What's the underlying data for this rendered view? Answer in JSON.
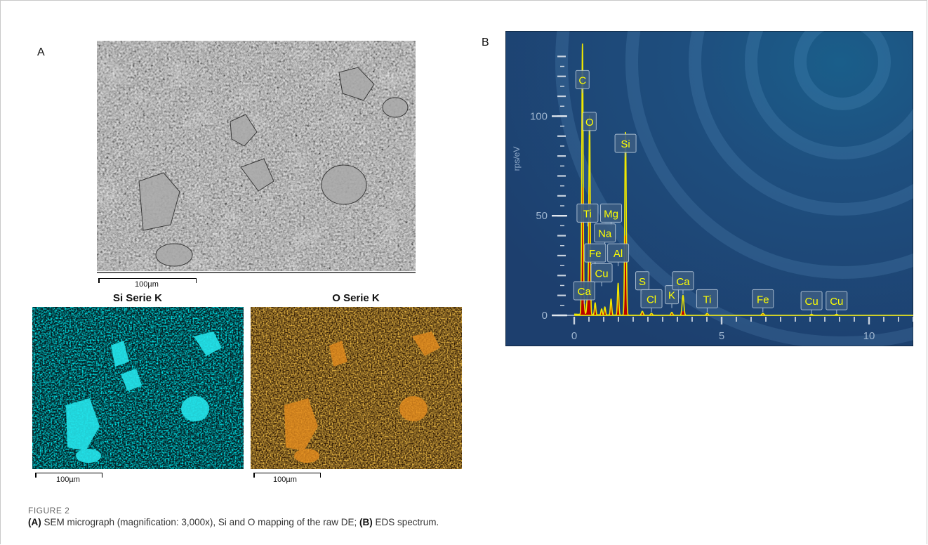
{
  "panel_a": {
    "label": "A",
    "sem_scale": "100µm",
    "maps": [
      {
        "title": "Si Serie K",
        "scale": "100µm",
        "color": "#00d7e0"
      },
      {
        "title": "O Serie K",
        "scale": "100µm",
        "color": "#d98210"
      }
    ]
  },
  "panel_b": {
    "label": "B"
  },
  "caption": {
    "label": "FIGURE 2",
    "a_tag": "(A)",
    "a_text": " SEM micrograph (magnification: 3,000x), Si and O mapping of the raw DE; ",
    "b_tag": "(B)",
    "b_text": " EDS spectrum."
  },
  "chart_data": {
    "type": "line",
    "title": "",
    "xlabel": "",
    "ylabel": "rps/eV",
    "xlim": [
      0,
      11.5
    ],
    "ylim": [
      0,
      140
    ],
    "x_ticks": [
      0,
      5,
      10
    ],
    "y_ticks": [
      0,
      50,
      100
    ],
    "grid": false,
    "background": "#1e4a78",
    "series_colors": {
      "fill": "#b80000",
      "overlay": "#f0e800"
    },
    "peaks": [
      {
        "element": "C",
        "x": 0.28,
        "height_red": 64,
        "height_yellow": 136,
        "width": 0.045,
        "label_y": 118
      },
      {
        "element": "O",
        "x": 0.52,
        "height_red": 64,
        "height_yellow": 100,
        "width": 0.045,
        "label_y": 97
      },
      {
        "element": "Si",
        "x": 1.74,
        "height_red": 40,
        "height_yellow": 92,
        "width": 0.05,
        "label_y": 86
      },
      {
        "element": "Ti",
        "x": 0.45,
        "height_red": 9,
        "height_yellow": 9,
        "width": 0.05,
        "label_y": 51
      },
      {
        "element": "Mg",
        "x": 1.25,
        "height_red": 6,
        "height_yellow": 8,
        "width": 0.045,
        "label_y": 51
      },
      {
        "element": "Na",
        "x": 1.04,
        "height_red": 3,
        "height_yellow": 4,
        "width": 0.045,
        "label_y": 41
      },
      {
        "element": "Fe",
        "x": 0.71,
        "height_red": 4,
        "height_yellow": 6,
        "width": 0.045,
        "label_y": 31
      },
      {
        "element": "Al",
        "x": 1.49,
        "height_red": 12,
        "height_yellow": 16,
        "width": 0.045,
        "label_y": 31
      },
      {
        "element": "Cu",
        "x": 0.93,
        "height_red": 2,
        "height_yellow": 3,
        "width": 0.045,
        "label_y": 21
      },
      {
        "element": "Ca",
        "x": 0.34,
        "height_red": 4,
        "height_yellow": 4,
        "width": 0.04,
        "label_y": 12
      },
      {
        "element": "S",
        "x": 2.31,
        "height_red": 1,
        "height_yellow": 2,
        "width": 0.06,
        "label_y": 17
      },
      {
        "element": "Cl",
        "x": 2.62,
        "height_red": 0.6,
        "height_yellow": 1,
        "width": 0.06,
        "label_y": 8
      },
      {
        "element": "K",
        "x": 3.31,
        "height_red": 0.8,
        "height_yellow": 1.5,
        "width": 0.06,
        "label_y": 10
      },
      {
        "element": "Ca",
        "x": 3.69,
        "height_red": 2,
        "height_yellow": 10,
        "width": 0.06,
        "label_y": 17
      },
      {
        "element": "Ti",
        "x": 4.51,
        "height_red": 0.5,
        "height_yellow": 1,
        "width": 0.06,
        "label_y": 8
      },
      {
        "element": "Fe",
        "x": 6.4,
        "height_red": 0.5,
        "height_yellow": 1,
        "width": 0.07,
        "label_y": 8
      },
      {
        "element": "Cu",
        "x": 8.05,
        "height_red": 0.3,
        "height_yellow": 0.5,
        "width": 0.07,
        "label_y": 7
      },
      {
        "element": "Cu",
        "x": 8.9,
        "height_red": 0.3,
        "height_yellow": 0.5,
        "width": 0.07,
        "label_y": 7
      }
    ]
  }
}
